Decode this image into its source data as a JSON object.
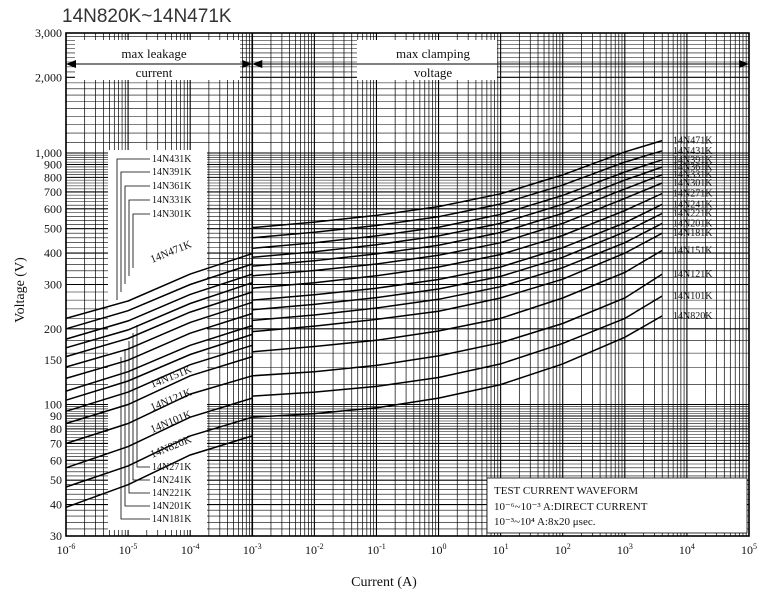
{
  "page_title": "14N820K~14N471K",
  "chart_data": {
    "type": "line",
    "title": "14N820K~14N471K",
    "xlabel": "Current (A)",
    "ylabel": "Voltage (V)",
    "x_scale": "log",
    "y_scale": "log",
    "xlim": [
      1e-06,
      100000
    ],
    "ylim": [
      30,
      3000
    ],
    "x_ticks": [
      {
        "base": "10",
        "exp": "-6"
      },
      {
        "base": "10",
        "exp": "-5"
      },
      {
        "base": "10",
        "exp": "-4"
      },
      {
        "base": "10",
        "exp": "-3"
      },
      {
        "base": "10",
        "exp": "-2"
      },
      {
        "base": "10",
        "exp": "-1"
      },
      {
        "base": "10",
        "exp": "0"
      },
      {
        "base": "10",
        "exp": "1"
      },
      {
        "base": "10",
        "exp": "2"
      },
      {
        "base": "10",
        "exp": "3"
      },
      {
        "base": "10",
        "exp": "4"
      },
      {
        "base": "10",
        "exp": "5"
      }
    ],
    "y_ticks": [
      {
        "v": 3000,
        "label": "3,000"
      },
      {
        "v": 2000,
        "label": "2,000"
      },
      {
        "v": 1000,
        "label": "1,000"
      },
      {
        "v": 900,
        "label": "900"
      },
      {
        "v": 800,
        "label": "800"
      },
      {
        "v": 700,
        "label": "700"
      },
      {
        "v": 600,
        "label": "600"
      },
      {
        "v": 500,
        "label": "500"
      },
      {
        "v": 400,
        "label": "400"
      },
      {
        "v": 300,
        "label": "300"
      },
      {
        "v": 200,
        "label": "200"
      },
      {
        "v": 150,
        "label": "150"
      },
      {
        "v": 100,
        "label": "100"
      },
      {
        "v": 90,
        "label": "90"
      },
      {
        "v": 80,
        "label": "80"
      },
      {
        "v": 70,
        "label": "70"
      },
      {
        "v": 60,
        "label": "60"
      },
      {
        "v": 50,
        "label": "50"
      },
      {
        "v": 40,
        "label": "40"
      },
      {
        "v": 30,
        "label": "30"
      }
    ],
    "grid": true,
    "region_labels": {
      "leakage": [
        "max leakage",
        "current"
      ],
      "clamping": [
        "max clamping",
        "voltage"
      ]
    },
    "legend_box": {
      "lines": [
        "TEST CURRENT WAVEFORM",
        "10⁻⁶~10⁻³ A:DIRECT CURRENT",
        "10⁻³~10⁴ A:8x20 μsec."
      ]
    },
    "left_label_groups": {
      "upper": [
        "14N431K",
        "14N391K",
        "14N361K",
        "14N331K",
        "14N301K"
      ],
      "lower": [
        "14N271K",
        "14N241K",
        "14N221K",
        "14N201K",
        "14N181K"
      ]
    },
    "series": [
      {
        "name": "14N820K",
        "leak": [
          [
            1e-06,
            39
          ],
          [
            1e-05,
            48
          ],
          [
            0.0001,
            63
          ],
          [
            0.001,
            75
          ]
        ],
        "clamp": [
          [
            0.001,
            89
          ],
          [
            0.01,
            92
          ],
          [
            0.1,
            97
          ],
          [
            1,
            106
          ],
          [
            10,
            120
          ],
          [
            100,
            145
          ],
          [
            1000,
            185
          ],
          [
            4000,
            225
          ]
        ]
      },
      {
        "name": "14N101K",
        "leak": [
          [
            1e-06,
            47
          ],
          [
            1e-05,
            57
          ],
          [
            0.0001,
            75
          ],
          [
            0.001,
            89
          ]
        ],
        "clamp": [
          [
            0.001,
            108
          ],
          [
            0.01,
            112
          ],
          [
            0.1,
            118
          ],
          [
            1,
            128
          ],
          [
            10,
            145
          ],
          [
            100,
            175
          ],
          [
            1000,
            220
          ],
          [
            4000,
            270
          ]
        ]
      },
      {
        "name": "14N121K",
        "leak": [
          [
            1e-06,
            56
          ],
          [
            1e-05,
            68
          ],
          [
            0.0001,
            89
          ],
          [
            0.001,
            106
          ]
        ],
        "clamp": [
          [
            0.001,
            130
          ],
          [
            0.01,
            135
          ],
          [
            0.1,
            143
          ],
          [
            1,
            156
          ],
          [
            10,
            176
          ],
          [
            100,
            210
          ],
          [
            1000,
            265
          ],
          [
            4000,
            330
          ]
        ]
      },
      {
        "name": "14N151K",
        "leak": [
          [
            1e-06,
            70
          ],
          [
            1e-05,
            84
          ],
          [
            0.0001,
            110
          ],
          [
            0.001,
            130
          ]
        ],
        "clamp": [
          [
            0.001,
            162
          ],
          [
            0.01,
            170
          ],
          [
            0.1,
            180
          ],
          [
            1,
            196
          ],
          [
            10,
            220
          ],
          [
            100,
            265
          ],
          [
            1000,
            335
          ],
          [
            4000,
            410
          ]
        ]
      },
      {
        "name": "14N181K",
        "leak": [
          [
            1e-06,
            84
          ],
          [
            1e-05,
            100
          ],
          [
            0.0001,
            130
          ],
          [
            0.001,
            155
          ]
        ],
        "clamp": [
          [
            0.001,
            195
          ],
          [
            0.01,
            205
          ],
          [
            0.1,
            218
          ],
          [
            1,
            235
          ],
          [
            10,
            265
          ],
          [
            100,
            315
          ],
          [
            1000,
            400
          ],
          [
            4000,
            480
          ]
        ]
      },
      {
        "name": "14N201K",
        "leak": [
          [
            1e-06,
            94
          ],
          [
            1e-05,
            112
          ],
          [
            0.0001,
            144
          ],
          [
            0.001,
            172
          ]
        ],
        "clamp": [
          [
            0.001,
            216
          ],
          [
            0.01,
            227
          ],
          [
            0.1,
            242
          ],
          [
            1,
            262
          ],
          [
            10,
            294
          ],
          [
            100,
            350
          ],
          [
            1000,
            440
          ],
          [
            4000,
            525
          ]
        ]
      },
      {
        "name": "14N221K",
        "leak": [
          [
            1e-06,
            104
          ],
          [
            1e-05,
            124
          ],
          [
            0.0001,
            158
          ],
          [
            0.001,
            190
          ]
        ],
        "clamp": [
          [
            0.001,
            238
          ],
          [
            0.01,
            250
          ],
          [
            0.1,
            266
          ],
          [
            1,
            288
          ],
          [
            10,
            323
          ],
          [
            100,
            385
          ],
          [
            1000,
            485
          ],
          [
            4000,
            575
          ]
        ]
      },
      {
        "name": "14N241K",
        "leak": [
          [
            1e-06,
            113
          ],
          [
            1e-05,
            135
          ],
          [
            0.0001,
            172
          ],
          [
            0.001,
            206
          ]
        ],
        "clamp": [
          [
            0.001,
            260
          ],
          [
            0.01,
            273
          ],
          [
            0.1,
            290
          ],
          [
            1,
            314
          ],
          [
            10,
            352
          ],
          [
            100,
            420
          ],
          [
            1000,
            528
          ],
          [
            4000,
            625
          ]
        ]
      },
      {
        "name": "14N271K",
        "leak": [
          [
            1e-06,
            127
          ],
          [
            1e-05,
            150
          ],
          [
            0.0001,
            192
          ],
          [
            0.001,
            230
          ]
        ],
        "clamp": [
          [
            0.001,
            290
          ],
          [
            0.01,
            305
          ],
          [
            0.1,
            325
          ],
          [
            1,
            352
          ],
          [
            10,
            395
          ],
          [
            100,
            470
          ],
          [
            1000,
            590
          ],
          [
            4000,
            690
          ]
        ]
      },
      {
        "name": "14N301K",
        "leak": [
          [
            1e-06,
            141
          ],
          [
            1e-05,
            166
          ],
          [
            0.0001,
            212
          ],
          [
            0.001,
            255
          ]
        ],
        "clamp": [
          [
            0.001,
            325
          ],
          [
            0.01,
            341
          ],
          [
            0.1,
            362
          ],
          [
            1,
            392
          ],
          [
            10,
            440
          ],
          [
            100,
            525
          ],
          [
            1000,
            660
          ],
          [
            4000,
            760
          ]
        ]
      },
      {
        "name": "14N331K",
        "leak": [
          [
            1e-06,
            155
          ],
          [
            1e-05,
            183
          ],
          [
            0.0001,
            233
          ],
          [
            0.001,
            280
          ]
        ],
        "clamp": [
          [
            0.001,
            355
          ],
          [
            0.01,
            373
          ],
          [
            0.1,
            397
          ],
          [
            1,
            430
          ],
          [
            10,
            483
          ],
          [
            100,
            575
          ],
          [
            1000,
            720
          ],
          [
            4000,
            820
          ]
        ]
      },
      {
        "name": "14N361K",
        "leak": [
          [
            1e-06,
            168
          ],
          [
            1e-05,
            198
          ],
          [
            0.0001,
            252
          ],
          [
            0.001,
            305
          ]
        ],
        "clamp": [
          [
            0.001,
            385
          ],
          [
            0.01,
            405
          ],
          [
            0.1,
            432
          ],
          [
            1,
            468
          ],
          [
            10,
            525
          ],
          [
            100,
            625
          ],
          [
            1000,
            780
          ],
          [
            4000,
            880
          ]
        ]
      },
      {
        "name": "14N391K",
        "leak": [
          [
            1e-06,
            182
          ],
          [
            1e-05,
            215
          ],
          [
            0.0001,
            274
          ],
          [
            0.001,
            330
          ]
        ],
        "clamp": [
          [
            0.001,
            418
          ],
          [
            0.01,
            440
          ],
          [
            0.1,
            468
          ],
          [
            1,
            507
          ],
          [
            10,
            570
          ],
          [
            100,
            678
          ],
          [
            1000,
            840
          ],
          [
            4000,
            940
          ]
        ]
      },
      {
        "name": "14N431K",
        "leak": [
          [
            1e-06,
            200
          ],
          [
            1e-05,
            236
          ],
          [
            0.0001,
            300
          ],
          [
            0.001,
            362
          ]
        ],
        "clamp": [
          [
            0.001,
            460
          ],
          [
            0.01,
            484
          ],
          [
            0.1,
            515
          ],
          [
            1,
            558
          ],
          [
            10,
            627
          ],
          [
            100,
            745
          ],
          [
            1000,
            920
          ],
          [
            4000,
            1020
          ]
        ]
      },
      {
        "name": "14N471K",
        "leak": [
          [
            1e-06,
            220
          ],
          [
            1e-05,
            258
          ],
          [
            0.0001,
            330
          ],
          [
            0.001,
            398
          ]
        ],
        "clamp": [
          [
            0.001,
            505
          ],
          [
            0.01,
            531
          ],
          [
            0.1,
            565
          ],
          [
            1,
            612
          ],
          [
            10,
            688
          ],
          [
            100,
            818
          ],
          [
            1000,
            1010
          ],
          [
            4000,
            1120
          ]
        ]
      }
    ],
    "right_labels": [
      "14N471K",
      "14N431K",
      "14N391K",
      "14N361K",
      "14N331K",
      "14N301K",
      "14N271K",
      "14N241K",
      "14N221K",
      "14N201K",
      "14N181K",
      "14N151K",
      "14N121K",
      "14N101K",
      "14N820K"
    ],
    "left_angled_labels": [
      "14N471K",
      "14N151K",
      "14N121K",
      "14N101K",
      "14N820K"
    ]
  }
}
